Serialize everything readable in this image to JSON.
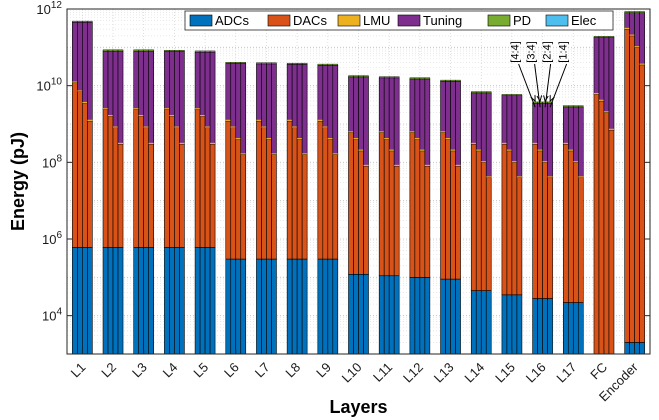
{
  "chart_data": {
    "type": "bar",
    "stacked": true,
    "y_scale": "log",
    "ylim": [
      1000.0,
      1000000000000.0
    ],
    "ylabel": "Energy (pJ)",
    "xlabel": "Layers",
    "grid": true,
    "legend_position": "top",
    "y_ticks": [
      {
        "value": 10000.0,
        "base": "10",
        "exp": "4"
      },
      {
        "value": 1000000.0,
        "base": "10",
        "exp": "6"
      },
      {
        "value": 100000000.0,
        "base": "10",
        "exp": "8"
      },
      {
        "value": 10000000000.0,
        "base": "10",
        "exp": "10"
      },
      {
        "value": 1000000000000.0,
        "base": "10",
        "exp": "12"
      }
    ],
    "categories": [
      "L1",
      "L2",
      "L3",
      "L4",
      "L5",
      "L6",
      "L7",
      "L8",
      "L9",
      "L10",
      "L11",
      "L12",
      "L13",
      "L14",
      "L15",
      "L16",
      "L17",
      "FC",
      "Encoder"
    ],
    "series": [
      {
        "name": "ADCs",
        "color": "#0072BD"
      },
      {
        "name": "DACs",
        "color": "#D95319"
      },
      {
        "name": "LMU",
        "color": "#EDB120"
      },
      {
        "name": "Tuning",
        "color": "#7E2F8E"
      },
      {
        "name": "PD",
        "color": "#77AC30"
      },
      {
        "name": "Elec",
        "color": "#4DBEEE"
      }
    ],
    "sub_bar_labels": [
      "4:4",
      "3:4",
      "2:4",
      "1:4"
    ],
    "annotated_category": "L16",
    "bars": [
      {
        "category": "L1",
        "sub": [
          [
            600000.0,
            12000000000.0,
            450000000000.0
          ],
          [
            600000.0,
            7000000000.0,
            450000000000.0
          ],
          [
            600000.0,
            3500000000.0,
            450000000000.0
          ],
          [
            600000.0,
            1200000000.0,
            450000000000.0
          ]
        ]
      },
      {
        "category": "L2",
        "sub": [
          [
            600000.0,
            2400000000.0,
            80000000000.0
          ],
          [
            600000.0,
            1600000000.0,
            80000000000.0
          ],
          [
            600000.0,
            800000000.0,
            80000000000.0
          ],
          [
            600000.0,
            300000000.0,
            80000000000.0
          ]
        ]
      },
      {
        "category": "L3",
        "sub": [
          [
            600000.0,
            2400000000.0,
            80000000000.0
          ],
          [
            600000.0,
            1600000000.0,
            80000000000.0
          ],
          [
            600000.0,
            800000000.0,
            80000000000.0
          ],
          [
            600000.0,
            300000000.0,
            80000000000.0
          ]
        ]
      },
      {
        "category": "L4",
        "sub": [
          [
            600000.0,
            2400000000.0,
            78000000000.0
          ],
          [
            600000.0,
            1600000000.0,
            78000000000.0
          ],
          [
            600000.0,
            800000000.0,
            78000000000.0
          ],
          [
            600000.0,
            300000000.0,
            78000000000.0
          ]
        ]
      },
      {
        "category": "L5",
        "sub": [
          [
            600000.0,
            2400000000.0,
            75000000000.0
          ],
          [
            600000.0,
            1600000000.0,
            75000000000.0
          ],
          [
            600000.0,
            800000000.0,
            75000000000.0
          ],
          [
            600000.0,
            300000000.0,
            75000000000.0
          ]
        ]
      },
      {
        "category": "L6",
        "sub": [
          [
            300000.0,
            1200000000.0,
            38000000000.0
          ],
          [
            300000.0,
            800000000.0,
            38000000000.0
          ],
          [
            300000.0,
            400000000.0,
            38000000000.0
          ],
          [
            300000.0,
            160000000.0,
            38000000000.0
          ]
        ]
      },
      {
        "category": "L7",
        "sub": [
          [
            300000.0,
            1200000000.0,
            37000000000.0
          ],
          [
            300000.0,
            800000000.0,
            37000000000.0
          ],
          [
            300000.0,
            400000000.0,
            37000000000.0
          ],
          [
            300000.0,
            160000000.0,
            37000000000.0
          ]
        ]
      },
      {
        "category": "L8",
        "sub": [
          [
            300000.0,
            1200000000.0,
            36000000000.0
          ],
          [
            300000.0,
            800000000.0,
            36000000000.0
          ],
          [
            300000.0,
            400000000.0,
            36000000000.0
          ],
          [
            300000.0,
            160000000.0,
            36000000000.0
          ]
        ]
      },
      {
        "category": "L9",
        "sub": [
          [
            300000.0,
            1200000000.0,
            34000000000.0
          ],
          [
            300000.0,
            800000000.0,
            34000000000.0
          ],
          [
            300000.0,
            400000000.0,
            34000000000.0
          ],
          [
            300000.0,
            160000000.0,
            34000000000.0
          ]
        ]
      },
      {
        "category": "L10",
        "sub": [
          [
            120000.0,
            600000000.0,
            17000000000.0
          ],
          [
            120000.0,
            400000000.0,
            17000000000.0
          ],
          [
            120000.0,
            200000000.0,
            17000000000.0
          ],
          [
            120000.0,
            80000000.0,
            17000000000.0
          ]
        ]
      },
      {
        "category": "L11",
        "sub": [
          [
            110000.0,
            600000000.0,
            16000000000.0
          ],
          [
            110000.0,
            400000000.0,
            16000000000.0
          ],
          [
            110000.0,
            200000000.0,
            16000000000.0
          ],
          [
            110000.0,
            80000000.0,
            16000000000.0
          ]
        ]
      },
      {
        "category": "L12",
        "sub": [
          [
            100000.0,
            600000000.0,
            15000000000.0
          ],
          [
            100000.0,
            400000000.0,
            15000000000.0
          ],
          [
            100000.0,
            200000000.0,
            15000000000.0
          ],
          [
            100000.0,
            80000000.0,
            15000000000.0
          ]
        ]
      },
      {
        "category": "L13",
        "sub": [
          [
            90000.0,
            600000000.0,
            13000000000.0
          ],
          [
            90000.0,
            400000000.0,
            13000000000.0
          ],
          [
            90000.0,
            200000000.0,
            13000000000.0
          ],
          [
            90000.0,
            80000000.0,
            13000000000.0
          ]
        ]
      },
      {
        "category": "L14",
        "sub": [
          [
            45000.0,
            300000000.0,
            6500000000.0
          ],
          [
            45000.0,
            200000000.0,
            6500000000.0
          ],
          [
            45000.0,
            100000000.0,
            6500000000.0
          ],
          [
            45000.0,
            40000000.0,
            6500000000.0
          ]
        ]
      },
      {
        "category": "L15",
        "sub": [
          [
            35000.0,
            300000000.0,
            5500000000.0
          ],
          [
            35000.0,
            200000000.0,
            5500000000.0
          ],
          [
            35000.0,
            100000000.0,
            5500000000.0
          ],
          [
            35000.0,
            40000000.0,
            5500000000.0
          ]
        ]
      },
      {
        "category": "L16",
        "sub": [
          [
            28000.0,
            300000000.0,
            3500000000.0
          ],
          [
            28000.0,
            200000000.0,
            3500000000.0
          ],
          [
            28000.0,
            100000000.0,
            3500000000.0
          ],
          [
            28000.0,
            40000000.0,
            3500000000.0
          ]
        ]
      },
      {
        "category": "L17",
        "sub": [
          [
            22000.0,
            300000000.0,
            2800000000.0
          ],
          [
            22000.0,
            200000000.0,
            2800000000.0
          ],
          [
            22000.0,
            100000000.0,
            2800000000.0
          ],
          [
            22000.0,
            40000000.0,
            2800000000.0
          ]
        ]
      },
      {
        "category": "FC",
        "sub": [
          [
            1000.0,
            6000000000.0,
            180000000000.0
          ],
          [
            1000.0,
            4000000000.0,
            180000000000.0
          ],
          [
            1000.0,
            2000000000.0,
            180000000000.0
          ],
          [
            1000.0,
            700000000.0,
            180000000000.0
          ]
        ]
      },
      {
        "category": "Encoder",
        "sub": [
          [
            2000.0,
            300000000000.0,
            800000000000.0
          ],
          [
            2000.0,
            200000000000.0,
            800000000000.0
          ],
          [
            2000.0,
            100000000000.0,
            800000000000.0
          ],
          [
            2000.0,
            35000000000.0,
            800000000000.0
          ]
        ]
      }
    ]
  }
}
